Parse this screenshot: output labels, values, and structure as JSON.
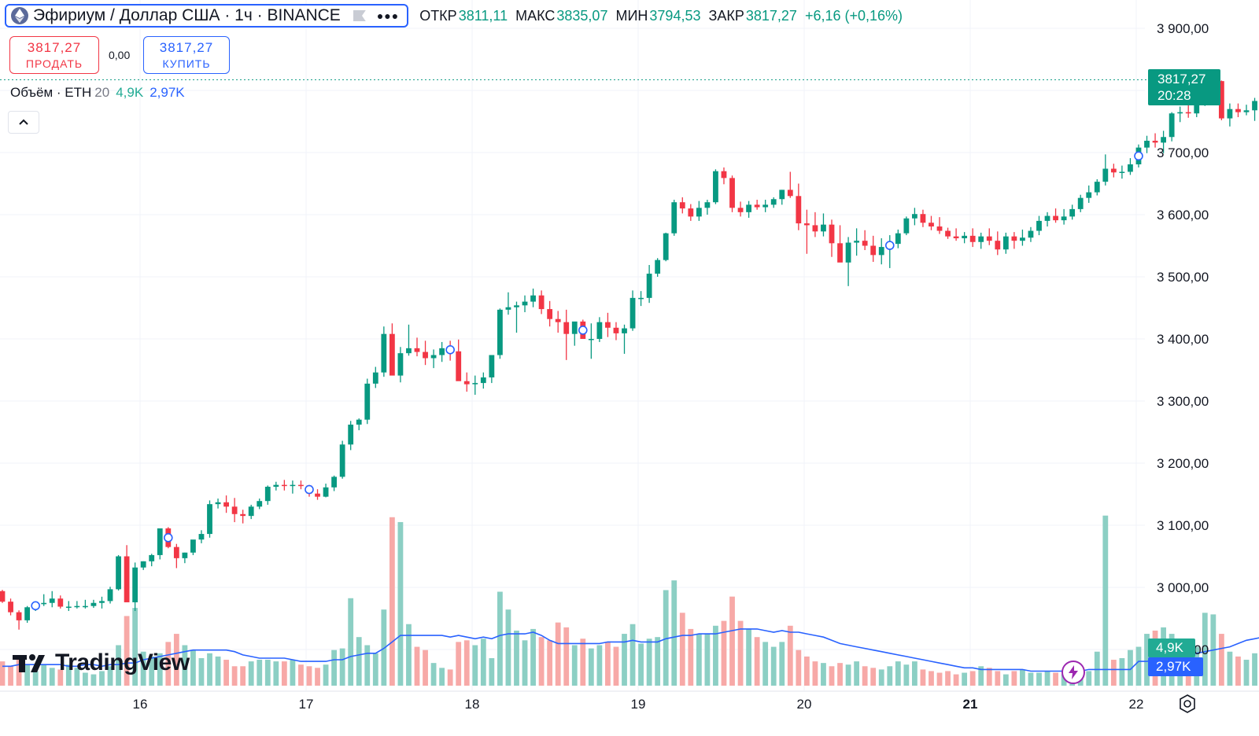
{
  "symbol": {
    "title": "Эфириум / Доллар США · 1ч · BINANCE",
    "open_label": "ОТКР",
    "open": "3811,11",
    "high_label": "МАКС",
    "high": "3835,07",
    "low_label": "МИН",
    "low": "3794,53",
    "close_label": "ЗАКР",
    "close": "3817,27",
    "change": "+6,16 (+0,16%)"
  },
  "trade": {
    "sell_price": "3817,27",
    "sell_label": "ПРОДАТЬ",
    "spread": "0,00",
    "buy_price": "3817,27",
    "buy_label": "КУПИТЬ"
  },
  "volume_legend": {
    "title": "Объём · ETH",
    "length": "20",
    "volume": "4,9K",
    "ma": "2,97K"
  },
  "last_price": {
    "price": "3817,27",
    "countdown": "20:28"
  },
  "volume_tags": {
    "volume": "4,9K",
    "ma": "2,97K"
  },
  "price_axis_labels": [
    "3 900,00",
    "3 800,00",
    "3 700,00",
    "3 600,00",
    "3 500,00",
    "3 400,00",
    "3 300,00",
    "3 200,00",
    "3 100,00",
    "3 000,00",
    "2 900,00"
  ],
  "time_axis_labels": [
    "16",
    "17",
    "18",
    "19",
    "20",
    "21",
    "22"
  ],
  "watermark": "TradingView",
  "colors": {
    "up": "#089981",
    "down": "#f23645",
    "vol_up": "#8ccfc4",
    "vol_down": "#f7a9a7",
    "ma": "#2962ff",
    "accent": "#2962ff"
  },
  "icons": [
    "ethereum-logo-icon",
    "flag-icon",
    "more-icon",
    "chevron-up-icon",
    "lightning-icon",
    "settings-icon"
  ],
  "chart_data": {
    "type": "candlestick",
    "title": "Эфириум / Доллар США · 1ч · BINANCE",
    "interval": "1h",
    "y_axis": {
      "min": 2900,
      "max": 3900,
      "position": "right",
      "unit": "USD"
    },
    "x_axis": {
      "labels": [
        "16",
        "17",
        "18",
        "19",
        "20",
        "21",
        "22"
      ],
      "first_candle_day": 15,
      "first_candle_hour": 8
    },
    "grid": true,
    "last_price": 3817.27,
    "ohlcv": [
      [
        2994,
        2996,
        2975,
        2977,
        1.5
      ],
      [
        2977,
        2982,
        2955,
        2960,
        1.2
      ],
      [
        2960,
        2963,
        2932,
        2947,
        1.6
      ],
      [
        2947,
        2970,
        2943,
        2968,
        1.3
      ],
      [
        2968,
        2976,
        2962,
        2973,
        0.9
      ],
      [
        2973,
        2989,
        2970,
        2975,
        1.3
      ],
      [
        2975,
        2994,
        2968,
        2982,
        1.1
      ],
      [
        2982,
        2987,
        2966,
        2969,
        1.0
      ],
      [
        2969,
        2978,
        2962,
        2969,
        1.3
      ],
      [
        2969,
        2978,
        2966,
        2970,
        1.1
      ],
      [
        2970,
        2980,
        2966,
        2970,
        0.8
      ],
      [
        2970,
        2980,
        2967,
        2975,
        0.7
      ],
      [
        2975,
        2985,
        2966,
        2978,
        0.9
      ],
      [
        2978,
        3001,
        2974,
        2997,
        1.2
      ],
      [
        2997,
        3052,
        2995,
        3050,
        2.5
      ],
      [
        3050,
        3068,
        2977,
        2976,
        4.3
      ],
      [
        2976,
        3040,
        2962,
        3032,
        4.8
      ],
      [
        3032,
        3042,
        3028,
        3042,
        2.1
      ],
      [
        3042,
        3054,
        3034,
        3052,
        1.8
      ],
      [
        3052,
        3092,
        3045,
        3095,
        2.0
      ],
      [
        3095,
        3097,
        3063,
        3065,
        2.7
      ],
      [
        3065,
        3070,
        3031,
        3047,
        3.2
      ],
      [
        3047,
        3056,
        3039,
        3056,
        2.5
      ],
      [
        3056,
        3076,
        3052,
        3077,
        2.2
      ],
      [
        3077,
        3092,
        3071,
        3086,
        1.7
      ],
      [
        3086,
        3140,
        3080,
        3134,
        2.0
      ],
      [
        3134,
        3143,
        3127,
        3137,
        1.8
      ],
      [
        3137,
        3148,
        3120,
        3130,
        1.6
      ],
      [
        3130,
        3144,
        3105,
        3118,
        1.2
      ],
      [
        3118,
        3125,
        3103,
        3115,
        1.2
      ],
      [
        3115,
        3133,
        3110,
        3130,
        1.5
      ],
      [
        3130,
        3143,
        3126,
        3139,
        1.6
      ],
      [
        3139,
        3164,
        3133,
        3162,
        1.6
      ],
      [
        3162,
        3170,
        3156,
        3165,
        1.5
      ],
      [
        3165,
        3173,
        3156,
        3164,
        1.5
      ],
      [
        3164,
        3172,
        3151,
        3165,
        1.6
      ],
      [
        3165,
        3172,
        3158,
        3164,
        1.3
      ],
      [
        3164,
        3165,
        3146,
        3151,
        1.2
      ],
      [
        3151,
        3158,
        3141,
        3146,
        1.1
      ],
      [
        3146,
        3167,
        3145,
        3161,
        1.3
      ],
      [
        3161,
        3180,
        3155,
        3178,
        2.2
      ],
      [
        3178,
        3236,
        3175,
        3230,
        2.3
      ],
      [
        3230,
        3268,
        3221,
        3262,
        5.4
      ],
      [
        3262,
        3272,
        3253,
        3270,
        3.0
      ],
      [
        3270,
        3336,
        3263,
        3328,
        2.5
      ],
      [
        3328,
        3355,
        3321,
        3346,
        2.0
      ],
      [
        3346,
        3420,
        3339,
        3408,
        4.7
      ],
      [
        3408,
        3425,
        3349,
        3341,
        10.4
      ],
      [
        3341,
        3387,
        3330,
        3377,
        10.1
      ],
      [
        3377,
        3423,
        3373,
        3385,
        3.8
      ],
      [
        3385,
        3402,
        3372,
        3379,
        2.4
      ],
      [
        3379,
        3397,
        3358,
        3369,
        2.2
      ],
      [
        3369,
        3383,
        3353,
        3374,
        1.4
      ],
      [
        3374,
        3395,
        3363,
        3385,
        1.1
      ],
      [
        3385,
        3397,
        3365,
        3380,
        1.0
      ],
      [
        3380,
        3399,
        3365,
        3332,
        2.7
      ],
      [
        3332,
        3346,
        3315,
        3327,
        2.8
      ],
      [
        3327,
        3341,
        3310,
        3329,
        2.5
      ],
      [
        3329,
        3346,
        3320,
        3338,
        2.9
      ],
      [
        3338,
        3373,
        3329,
        3374,
        1.7
      ],
      [
        3374,
        3449,
        3368,
        3447,
        5.8
      ],
      [
        3447,
        3475,
        3439,
        3451,
        4.7
      ],
      [
        3451,
        3460,
        3410,
        3454,
        3.4
      ],
      [
        3454,
        3470,
        3443,
        3460,
        2.8
      ],
      [
        3460,
        3481,
        3451,
        3470,
        3.5
      ],
      [
        3470,
        3478,
        3440,
        3448,
        3.0
      ],
      [
        3448,
        3461,
        3420,
        3432,
        2.8
      ],
      [
        3432,
        3445,
        3410,
        3427,
        3.9
      ],
      [
        3427,
        3447,
        3366,
        3408,
        3.6
      ],
      [
        3408,
        3425,
        3389,
        3428,
        2.5
      ],
      [
        3428,
        3431,
        3404,
        3400,
        2.9
      ],
      [
        3400,
        3425,
        3368,
        3400,
        2.3
      ],
      [
        3400,
        3435,
        3395,
        3427,
        2.5
      ],
      [
        3427,
        3442,
        3403,
        3418,
        2.7
      ],
      [
        3418,
        3427,
        3398,
        3409,
        2.4
      ],
      [
        3409,
        3423,
        3376,
        3417,
        3.2
      ],
      [
        3417,
        3478,
        3413,
        3466,
        3.8
      ],
      [
        3466,
        3477,
        3453,
        3466,
        2.6
      ],
      [
        3466,
        3519,
        3458,
        3505,
        2.9
      ],
      [
        3505,
        3530,
        3500,
        3527,
        3.0
      ],
      [
        3527,
        3571,
        3525,
        3570,
        5.9
      ],
      [
        3570,
        3624,
        3566,
        3620,
        6.5
      ],
      [
        3620,
        3628,
        3602,
        3610,
        4.5
      ],
      [
        3610,
        3617,
        3590,
        3597,
        3.5
      ],
      [
        3597,
        3622,
        3590,
        3611,
        3.2
      ],
      [
        3611,
        3624,
        3600,
        3620,
        3.2
      ],
      [
        3620,
        3673,
        3617,
        3670,
        3.7
      ],
      [
        3670,
        3676,
        3649,
        3659,
        4.0
      ],
      [
        3659,
        3663,
        3604,
        3611,
        5.5
      ],
      [
        3611,
        3621,
        3597,
        3604,
        4.0
      ],
      [
        3604,
        3622,
        3595,
        3616,
        3.5
      ],
      [
        3616,
        3624,
        3608,
        3612,
        3.0
      ],
      [
        3612,
        3624,
        3604,
        3616,
        2.7
      ],
      [
        3616,
        3628,
        3611,
        3625,
        2.4
      ],
      [
        3625,
        3640,
        3616,
        3640,
        2.7
      ],
      [
        3640,
        3669,
        3627,
        3630,
        3.7
      ],
      [
        3630,
        3650,
        3575,
        3586,
        2.2
      ],
      [
        3586,
        3608,
        3537,
        3583,
        1.8
      ],
      [
        3583,
        3604,
        3564,
        3573,
        1.5
      ],
      [
        3573,
        3602,
        3565,
        3584,
        1.4
      ],
      [
        3584,
        3592,
        3532,
        3554,
        1.2
      ],
      [
        3554,
        3583,
        3524,
        3523,
        1.4
      ],
      [
        3523,
        3564,
        3485,
        3555,
        1.3
      ],
      [
        3555,
        3578,
        3534,
        3558,
        1.5
      ],
      [
        3558,
        3575,
        3543,
        3550,
        1.2
      ],
      [
        3550,
        3566,
        3524,
        3535,
        1.1
      ],
      [
        3535,
        3562,
        3520,
        3548,
        1.0
      ],
      [
        3548,
        3567,
        3514,
        3553,
        1.2
      ],
      [
        3553,
        3576,
        3546,
        3570,
        1.5
      ],
      [
        3570,
        3597,
        3567,
        3594,
        1.3
      ],
      [
        3594,
        3611,
        3583,
        3601,
        1.5
      ],
      [
        3601,
        3608,
        3580,
        3587,
        1.0
      ],
      [
        3587,
        3598,
        3575,
        3581,
        0.9
      ],
      [
        3581,
        3596,
        3569,
        3574,
        0.8
      ],
      [
        3574,
        3579,
        3561,
        3565,
        0.9
      ],
      [
        3565,
        3578,
        3558,
        3562,
        0.7
      ],
      [
        3562,
        3572,
        3554,
        3566,
        0.8
      ],
      [
        3566,
        3578,
        3548,
        3556,
        0.9
      ],
      [
        3556,
        3571,
        3545,
        3565,
        1.2
      ],
      [
        3565,
        3578,
        3551,
        3558,
        1.1
      ],
      [
        3558,
        3573,
        3535,
        3544,
        0.9
      ],
      [
        3544,
        3571,
        3537,
        3565,
        0.7
      ],
      [
        3565,
        3572,
        3545,
        3558,
        0.9
      ],
      [
        3558,
        3576,
        3550,
        3563,
        1.0
      ],
      [
        3563,
        3580,
        3556,
        3574,
        0.8
      ],
      [
        3574,
        3598,
        3567,
        3590,
        0.8
      ],
      [
        3590,
        3604,
        3581,
        3598,
        0.9
      ],
      [
        3598,
        3610,
        3587,
        3591,
        0.8
      ],
      [
        3591,
        3609,
        3584,
        3597,
        0.7
      ],
      [
        3597,
        3616,
        3592,
        3609,
        0.9
      ],
      [
        3609,
        3632,
        3604,
        3627,
        1.2
      ],
      [
        3627,
        3647,
        3619,
        3636,
        0.9
      ],
      [
        3636,
        3657,
        3631,
        3653,
        2.1
      ],
      [
        3653,
        3697,
        3647,
        3674,
        10.5
      ],
      [
        3674,
        3682,
        3660,
        3668,
        1.6
      ],
      [
        3668,
        3679,
        3658,
        3669,
        1.7
      ],
      [
        3669,
        3691,
        3664,
        3681,
        2.2
      ],
      [
        3681,
        3713,
        3676,
        3708,
        2.4
      ],
      [
        3708,
        3727,
        3699,
        3719,
        3.2
      ],
      [
        3719,
        3731,
        3708,
        3716,
        3.4
      ],
      [
        3716,
        3735,
        3699,
        3725,
        3.6
      ],
      [
        3725,
        3765,
        3718,
        3763,
        3.2
      ],
      [
        3763,
        3774,
        3749,
        3765,
        2.2
      ],
      [
        3765,
        3776,
        3756,
        3763,
        2.0
      ],
      [
        3763,
        3791,
        3757,
        3781,
        2.4
      ],
      [
        3781,
        3806,
        3775,
        3800,
        4.5
      ],
      [
        3800,
        3826,
        3796,
        3815,
        4.4
      ],
      [
        3815,
        3816,
        3752,
        3755,
        3.2
      ],
      [
        3755,
        3779,
        3742,
        3770,
        2.1
      ],
      [
        3770,
        3779,
        3757,
        3765,
        1.8
      ],
      [
        3765,
        3777,
        3760,
        3768,
        1.6
      ],
      [
        3768,
        3788,
        3751,
        3783,
        2.0
      ],
      [
        3783,
        3790,
        3718,
        3730,
        1.5
      ],
      [
        3730,
        3786,
        3683,
        3775,
        1.3
      ],
      [
        3775,
        3788,
        3756,
        3764,
        3.1
      ],
      [
        3764,
        3779,
        3752,
        3768,
        4.0
      ],
      [
        3768,
        3770,
        3703,
        3745,
        2.9
      ],
      [
        3745,
        3762,
        3728,
        3743,
        2.2
      ],
      [
        3743,
        3761,
        3737,
        3755,
        2.0
      ],
      [
        3755,
        3772,
        3748,
        3760,
        2.0
      ],
      [
        3760,
        3789,
        3754,
        3785,
        2.3
      ],
      [
        3785,
        3809,
        3770,
        3800,
        2.7
      ],
      [
        3800,
        3812,
        3786,
        3793,
        2.8
      ],
      [
        3793,
        3803,
        3766,
        3783,
        2.1
      ],
      [
        3783,
        3800,
        3762,
        3777,
        2.0
      ],
      [
        3777,
        3812,
        3768,
        3811,
        7.9
      ],
      [
        3811,
        3835,
        3806,
        3811,
        5.6
      ],
      [
        3811,
        3835,
        3795,
        3817,
        4.9
      ]
    ],
    "volume_ma": [
      1.2,
      1.2,
      1.3,
      1.3,
      1.3,
      1.3,
      1.3,
      1.3,
      1.2,
      1.2,
      1.3,
      1.3,
      1.2,
      1.3,
      1.3,
      1.4,
      1.4,
      1.6,
      1.7,
      1.8,
      1.9,
      2.0,
      2.1,
      2.2,
      2.2,
      2.2,
      2.2,
      2.2,
      2.1,
      1.9,
      1.8,
      1.7,
      1.7,
      1.7,
      1.7,
      1.6,
      1.5,
      1.5,
      1.5,
      1.5,
      1.6,
      1.6,
      1.8,
      1.9,
      2.0,
      2.0,
      2.3,
      2.7,
      3.1,
      3.1,
      3.1,
      3.1,
      3.1,
      3.1,
      3.0,
      3.1,
      3.0,
      2.9,
      3.0,
      2.9,
      3.1,
      3.2,
      3.2,
      3.2,
      3.3,
      3.1,
      2.8,
      2.6,
      2.6,
      2.6,
      2.6,
      2.6,
      2.6,
      2.7,
      2.7,
      2.7,
      2.8,
      2.7,
      2.7,
      2.7,
      2.9,
      3.0,
      3.1,
      3.1,
      3.2,
      3.2,
      3.2,
      3.3,
      3.4,
      3.5,
      3.5,
      3.5,
      3.4,
      3.3,
      3.4,
      3.3,
      3.3,
      3.2,
      3.1,
      3.0,
      2.8,
      2.6,
      2.5,
      2.4,
      2.3,
      2.2,
      2.1,
      2.0,
      1.9,
      1.8,
      1.7,
      1.6,
      1.5,
      1.4,
      1.3,
      1.2,
      1.1,
      1.1,
      1.0,
      1.0,
      1.0,
      1.0,
      1.0,
      1.0,
      0.9,
      0.9,
      0.9,
      0.9,
      0.9,
      0.9,
      0.9,
      1.0,
      1.0,
      1.0,
      1.0,
      1.0,
      1.0,
      1.5,
      1.5,
      1.6,
      1.6,
      1.7,
      1.8,
      1.9,
      2.0,
      2.1,
      2.2,
      2.3,
      2.4,
      2.6,
      2.8,
      2.9,
      3.0,
      3.0,
      3.0,
      3.0,
      3.0,
      3.0,
      3.0,
      3.0,
      2.6,
      2.5,
      2.5,
      2.5,
      2.5,
      2.4,
      2.4,
      2.5,
      2.7,
      2.8,
      2.97
    ]
  }
}
